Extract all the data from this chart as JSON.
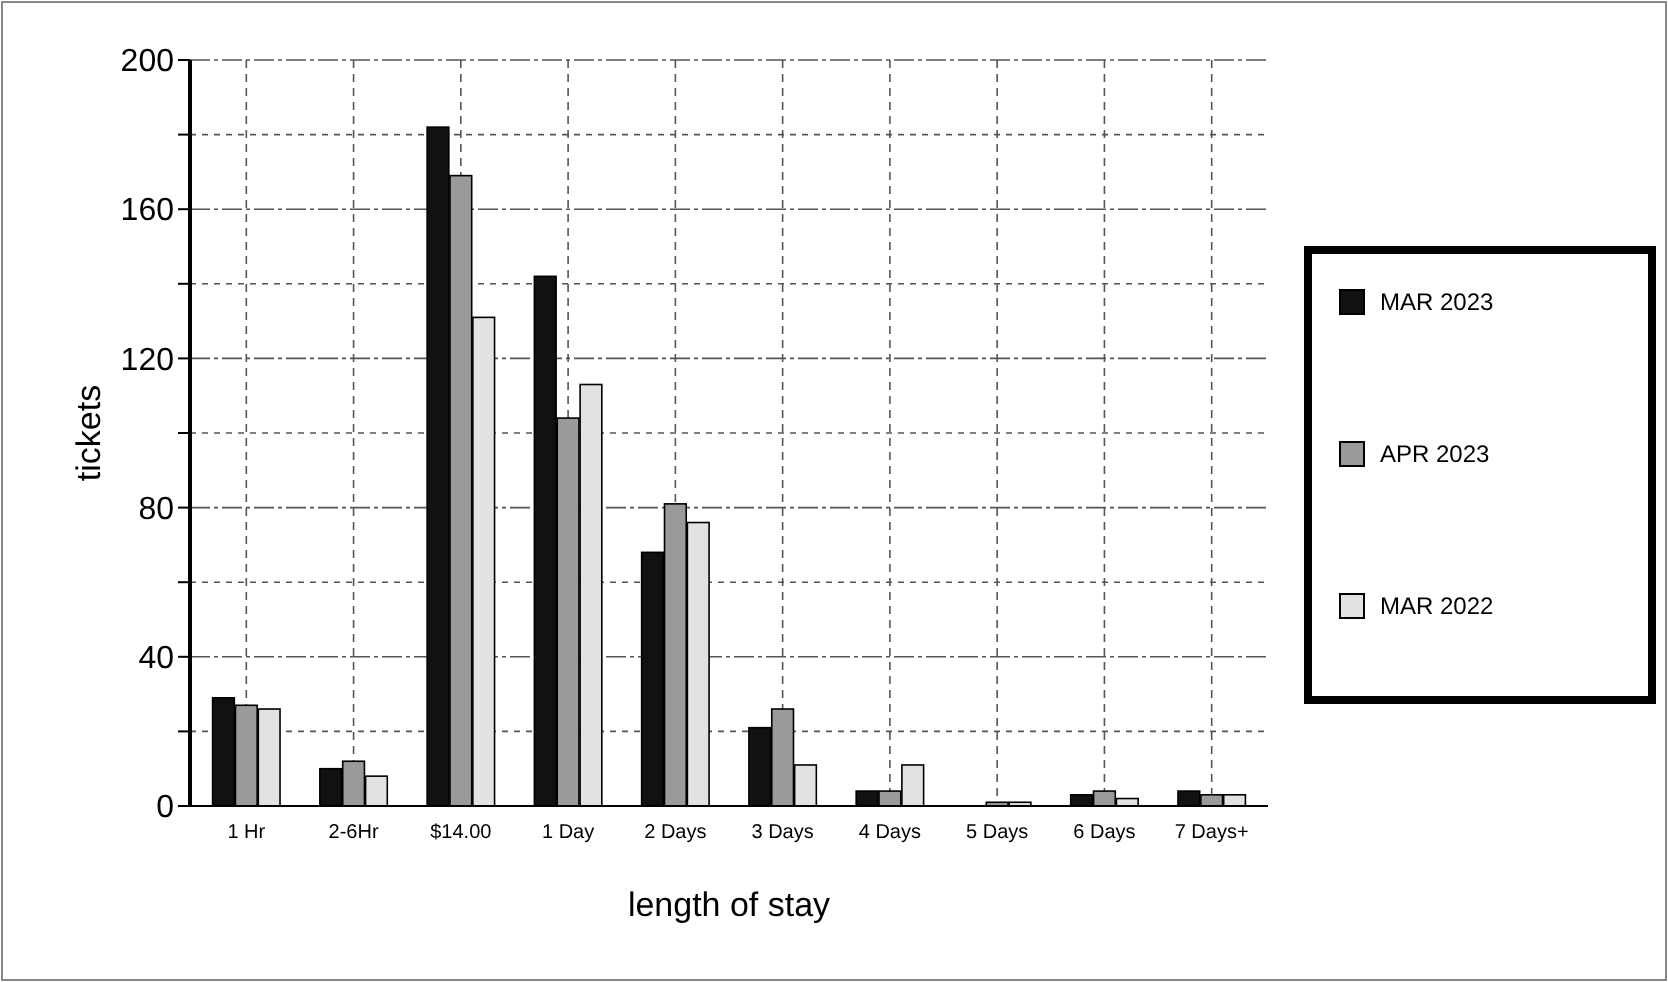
{
  "chart_data": {
    "type": "bar",
    "xlabel": "length of stay",
    "ylabel": "tickets",
    "categories": [
      "1 Hr",
      "2-6Hr",
      "$14.00",
      "1 Day",
      "2 Days",
      "3 Days",
      "4 Days",
      "5 Days",
      "6 Days",
      "7 Days+"
    ],
    "series": [
      {
        "name": "MAR 2023",
        "color": "#111111",
        "values": [
          29,
          10,
          182,
          142,
          68,
          21,
          4,
          0,
          3,
          4
        ]
      },
      {
        "name": "APR 2023",
        "color": "#9a9a9a",
        "values": [
          27,
          12,
          169,
          104,
          81,
          26,
          4,
          1,
          4,
          3
        ]
      },
      {
        "name": "MAR 2022",
        "color": "#e2e2e2",
        "values": [
          26,
          8,
          131,
          113,
          76,
          11,
          11,
          1,
          2,
          3
        ]
      }
    ],
    "ylim": [
      0,
      200
    ],
    "yticks": [
      0,
      {
        "value": 20,
        "label": null
      },
      40,
      {
        "value": 60,
        "label": null
      },
      80,
      {
        "value": 100,
        "label": null
      },
      120,
      {
        "value": 140,
        "label": null
      },
      160,
      {
        "value": 180,
        "label": null
      },
      200
    ],
    "grid": true,
    "legend": "right"
  }
}
